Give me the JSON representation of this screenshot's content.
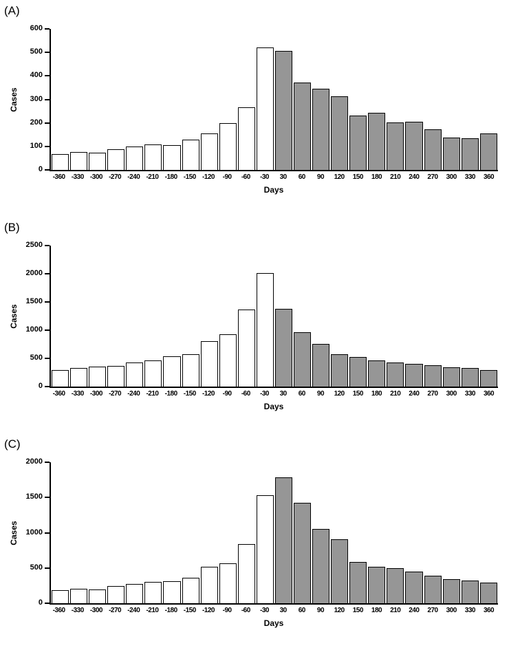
{
  "figure": {
    "background": "#ffffff"
  },
  "chart_data": [
    {
      "panel_label": "(A)",
      "type": "bar",
      "title": "",
      "xlabel": "Days",
      "ylabel": "Cases",
      "ylim": [
        0,
        600
      ],
      "yticks": [
        0,
        100,
        200,
        300,
        400,
        500,
        600
      ],
      "categories": [
        -360,
        -330,
        -300,
        -270,
        -240,
        -210,
        -180,
        -150,
        -120,
        -90,
        -60,
        -30,
        30,
        60,
        90,
        120,
        150,
        180,
        210,
        240,
        270,
        300,
        330,
        360
      ],
      "values": [
        67,
        76,
        73,
        88,
        100,
        108,
        105,
        129,
        155,
        199,
        266,
        520,
        505,
        371,
        345,
        313,
        231,
        243,
        202,
        205,
        173,
        137,
        134,
        155
      ],
      "pre_color": "#ffffff",
      "post_color": "#969696",
      "bar_border_color": "#000000",
      "grid": false,
      "legend": "none"
    },
    {
      "panel_label": "(B)",
      "type": "bar",
      "title": "",
      "xlabel": "Days",
      "ylabel": "Cases",
      "ylim": [
        0,
        2500
      ],
      "yticks": [
        0,
        500,
        1000,
        1500,
        2000,
        2500
      ],
      "categories": [
        -360,
        -330,
        -300,
        -270,
        -240,
        -210,
        -180,
        -150,
        -120,
        -90,
        -60,
        -30,
        30,
        60,
        90,
        120,
        150,
        180,
        210,
        240,
        270,
        300,
        330,
        360
      ],
      "values": [
        290,
        330,
        355,
        365,
        425,
        465,
        535,
        575,
        805,
        925,
        1365,
        2010,
        1380,
        965,
        760,
        575,
        525,
        465,
        425,
        405,
        375,
        340,
        330,
        295
      ],
      "pre_color": "#ffffff",
      "post_color": "#969696",
      "bar_border_color": "#000000",
      "grid": false,
      "legend": "none"
    },
    {
      "panel_label": "(C)",
      "type": "bar",
      "title": "",
      "xlabel": "Days",
      "ylabel": "Cases",
      "ylim": [
        0,
        2000
      ],
      "yticks": [
        0,
        500,
        1000,
        1500,
        2000
      ],
      "categories": [
        -360,
        -330,
        -300,
        -270,
        -240,
        -210,
        -180,
        -150,
        -120,
        -90,
        -60,
        -30,
        30,
        60,
        90,
        120,
        150,
        180,
        210,
        240,
        270,
        300,
        330,
        360
      ],
      "values": [
        185,
        205,
        195,
        245,
        275,
        300,
        310,
        360,
        520,
        565,
        840,
        1530,
        1785,
        1425,
        1055,
        910,
        585,
        520,
        500,
        450,
        390,
        340,
        320,
        290
      ],
      "pre_color": "#ffffff",
      "post_color": "#969696",
      "bar_border_color": "#000000",
      "grid": false,
      "legend": "none"
    }
  ]
}
